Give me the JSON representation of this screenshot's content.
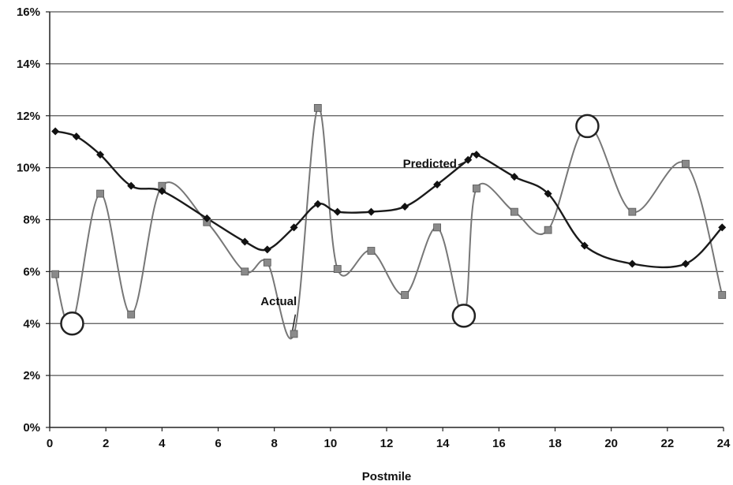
{
  "chart_data": {
    "type": "line",
    "xlabel": "Postmile",
    "ylabel": "",
    "xlim": [
      0,
      24
    ],
    "ylim": [
      0,
      16
    ],
    "xticks": [
      "0",
      "2",
      "4",
      "6",
      "8",
      "10",
      "12",
      "14",
      "16",
      "18",
      "20",
      "22",
      "24"
    ],
    "yticks": [
      "0%",
      "2%",
      "4%",
      "6%",
      "8%",
      "10%",
      "12%",
      "14%",
      "16%"
    ],
    "grid": "horizontal",
    "legend": "none",
    "series": [
      {
        "name": "Predicted",
        "marker": "diamond",
        "color": "#1a1a1a",
        "x": [
          0.2,
          0.95,
          1.8,
          2.9,
          4.0,
          5.6,
          6.95,
          7.75,
          8.7,
          9.55,
          10.25,
          11.45,
          12.65,
          13.8,
          14.9,
          15.2,
          16.55,
          17.75,
          19.05,
          20.75,
          22.65,
          23.95
        ],
        "y": [
          11.4,
          11.2,
          10.5,
          9.3,
          9.1,
          8.05,
          7.15,
          6.85,
          7.7,
          8.6,
          8.3,
          8.3,
          8.5,
          9.35,
          10.3,
          10.5,
          9.65,
          9.0,
          7.0,
          6.3,
          6.3,
          7.7
        ]
      },
      {
        "name": "Actual",
        "marker": "square",
        "color": "#777777",
        "x": [
          0.2,
          1.8,
          2.9,
          4.0,
          5.6,
          6.95,
          7.75,
          8.7,
          9.55,
          10.25,
          11.45,
          12.65,
          13.8,
          15.2,
          16.55,
          17.75,
          20.75,
          22.65,
          23.95
        ],
        "y": [
          5.9,
          9.0,
          4.35,
          9.3,
          7.9,
          6.0,
          6.35,
          3.6,
          12.3,
          6.1,
          6.8,
          5.1,
          7.7,
          9.2,
          8.3,
          7.6,
          8.3,
          10.15,
          5.1
        ]
      }
    ],
    "smooth_path": {
      "actual": [
        [
          0.2,
          5.9
        ],
        [
          0.8,
          4.0
        ],
        [
          1.8,
          9.0
        ],
        [
          2.9,
          4.35
        ],
        [
          4.0,
          9.3
        ],
        [
          5.6,
          7.9
        ],
        [
          6.95,
          6.0
        ],
        [
          7.75,
          6.35
        ],
        [
          8.7,
          3.6
        ],
        [
          9.55,
          12.3
        ],
        [
          10.25,
          6.1
        ],
        [
          11.45,
          6.8
        ],
        [
          12.65,
          5.1
        ],
        [
          13.8,
          7.7
        ],
        [
          14.75,
          4.3
        ],
        [
          15.2,
          9.2
        ],
        [
          16.55,
          8.3
        ],
        [
          17.75,
          7.6
        ],
        [
          19.15,
          11.6
        ],
        [
          20.75,
          8.3
        ],
        [
          22.65,
          10.15
        ],
        [
          23.95,
          5.1
        ]
      ]
    },
    "annotations": [
      {
        "text": "Predicted",
        "x": 14.5,
        "y": 10.0
      },
      {
        "text": "Actual",
        "x": 8.8,
        "y": 4.7
      }
    ],
    "circles": [
      {
        "x": 0.8,
        "y": 4.0
      },
      {
        "x": 14.75,
        "y": 4.3
      },
      {
        "x": 19.15,
        "y": 11.6
      }
    ]
  }
}
